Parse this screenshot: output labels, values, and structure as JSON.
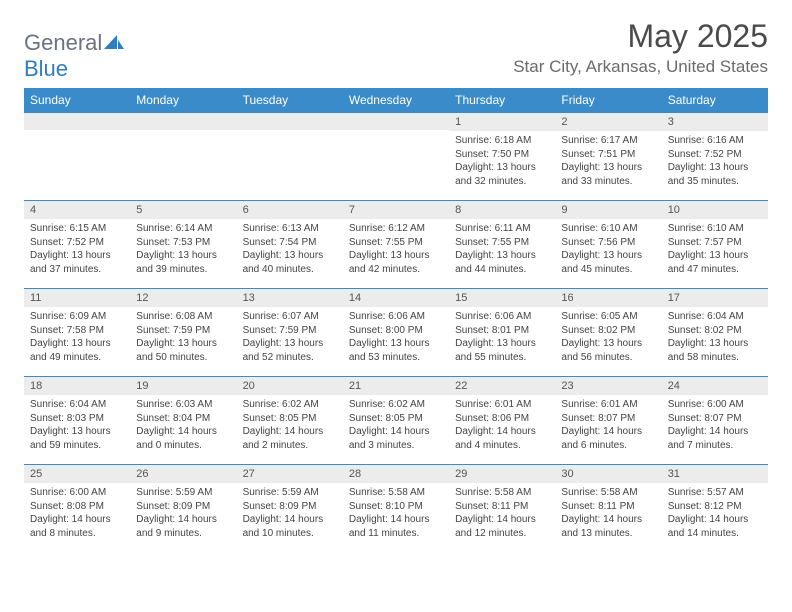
{
  "brand": {
    "word1": "General",
    "word2": "Blue"
  },
  "title": "May 2025",
  "location": "Star City, Arkansas, United States",
  "colors": {
    "header_bg": "#3a8bc9",
    "header_fg": "#ffffff",
    "daynum_bg": "#ececec",
    "rule": "#3a8bc9",
    "text": "#444444",
    "brand_gray": "#6b7280",
    "brand_blue": "#2f7ec0"
  },
  "dow": [
    "Sunday",
    "Monday",
    "Tuesday",
    "Wednesday",
    "Thursday",
    "Friday",
    "Saturday"
  ],
  "weeks": [
    [
      {
        "n": "",
        "sr": "",
        "ss": "",
        "dl": ""
      },
      {
        "n": "",
        "sr": "",
        "ss": "",
        "dl": ""
      },
      {
        "n": "",
        "sr": "",
        "ss": "",
        "dl": ""
      },
      {
        "n": "",
        "sr": "",
        "ss": "",
        "dl": ""
      },
      {
        "n": "1",
        "sr": "6:18 AM",
        "ss": "7:50 PM",
        "dl": "13 hours and 32 minutes."
      },
      {
        "n": "2",
        "sr": "6:17 AM",
        "ss": "7:51 PM",
        "dl": "13 hours and 33 minutes."
      },
      {
        "n": "3",
        "sr": "6:16 AM",
        "ss": "7:52 PM",
        "dl": "13 hours and 35 minutes."
      }
    ],
    [
      {
        "n": "4",
        "sr": "6:15 AM",
        "ss": "7:52 PM",
        "dl": "13 hours and 37 minutes."
      },
      {
        "n": "5",
        "sr": "6:14 AM",
        "ss": "7:53 PM",
        "dl": "13 hours and 39 minutes."
      },
      {
        "n": "6",
        "sr": "6:13 AM",
        "ss": "7:54 PM",
        "dl": "13 hours and 40 minutes."
      },
      {
        "n": "7",
        "sr": "6:12 AM",
        "ss": "7:55 PM",
        "dl": "13 hours and 42 minutes."
      },
      {
        "n": "8",
        "sr": "6:11 AM",
        "ss": "7:55 PM",
        "dl": "13 hours and 44 minutes."
      },
      {
        "n": "9",
        "sr": "6:10 AM",
        "ss": "7:56 PM",
        "dl": "13 hours and 45 minutes."
      },
      {
        "n": "10",
        "sr": "6:10 AM",
        "ss": "7:57 PM",
        "dl": "13 hours and 47 minutes."
      }
    ],
    [
      {
        "n": "11",
        "sr": "6:09 AM",
        "ss": "7:58 PM",
        "dl": "13 hours and 49 minutes."
      },
      {
        "n": "12",
        "sr": "6:08 AM",
        "ss": "7:59 PM",
        "dl": "13 hours and 50 minutes."
      },
      {
        "n": "13",
        "sr": "6:07 AM",
        "ss": "7:59 PM",
        "dl": "13 hours and 52 minutes."
      },
      {
        "n": "14",
        "sr": "6:06 AM",
        "ss": "8:00 PM",
        "dl": "13 hours and 53 minutes."
      },
      {
        "n": "15",
        "sr": "6:06 AM",
        "ss": "8:01 PM",
        "dl": "13 hours and 55 minutes."
      },
      {
        "n": "16",
        "sr": "6:05 AM",
        "ss": "8:02 PM",
        "dl": "13 hours and 56 minutes."
      },
      {
        "n": "17",
        "sr": "6:04 AM",
        "ss": "8:02 PM",
        "dl": "13 hours and 58 minutes."
      }
    ],
    [
      {
        "n": "18",
        "sr": "6:04 AM",
        "ss": "8:03 PM",
        "dl": "13 hours and 59 minutes."
      },
      {
        "n": "19",
        "sr": "6:03 AM",
        "ss": "8:04 PM",
        "dl": "14 hours and 0 minutes."
      },
      {
        "n": "20",
        "sr": "6:02 AM",
        "ss": "8:05 PM",
        "dl": "14 hours and 2 minutes."
      },
      {
        "n": "21",
        "sr": "6:02 AM",
        "ss": "8:05 PM",
        "dl": "14 hours and 3 minutes."
      },
      {
        "n": "22",
        "sr": "6:01 AM",
        "ss": "8:06 PM",
        "dl": "14 hours and 4 minutes."
      },
      {
        "n": "23",
        "sr": "6:01 AM",
        "ss": "8:07 PM",
        "dl": "14 hours and 6 minutes."
      },
      {
        "n": "24",
        "sr": "6:00 AM",
        "ss": "8:07 PM",
        "dl": "14 hours and 7 minutes."
      }
    ],
    [
      {
        "n": "25",
        "sr": "6:00 AM",
        "ss": "8:08 PM",
        "dl": "14 hours and 8 minutes."
      },
      {
        "n": "26",
        "sr": "5:59 AM",
        "ss": "8:09 PM",
        "dl": "14 hours and 9 minutes."
      },
      {
        "n": "27",
        "sr": "5:59 AM",
        "ss": "8:09 PM",
        "dl": "14 hours and 10 minutes."
      },
      {
        "n": "28",
        "sr": "5:58 AM",
        "ss": "8:10 PM",
        "dl": "14 hours and 11 minutes."
      },
      {
        "n": "29",
        "sr": "5:58 AM",
        "ss": "8:11 PM",
        "dl": "14 hours and 12 minutes."
      },
      {
        "n": "30",
        "sr": "5:58 AM",
        "ss": "8:11 PM",
        "dl": "14 hours and 13 minutes."
      },
      {
        "n": "31",
        "sr": "5:57 AM",
        "ss": "8:12 PM",
        "dl": "14 hours and 14 minutes."
      }
    ]
  ],
  "labels": {
    "sunrise": "Sunrise:",
    "sunset": "Sunset:",
    "daylight": "Daylight:"
  }
}
